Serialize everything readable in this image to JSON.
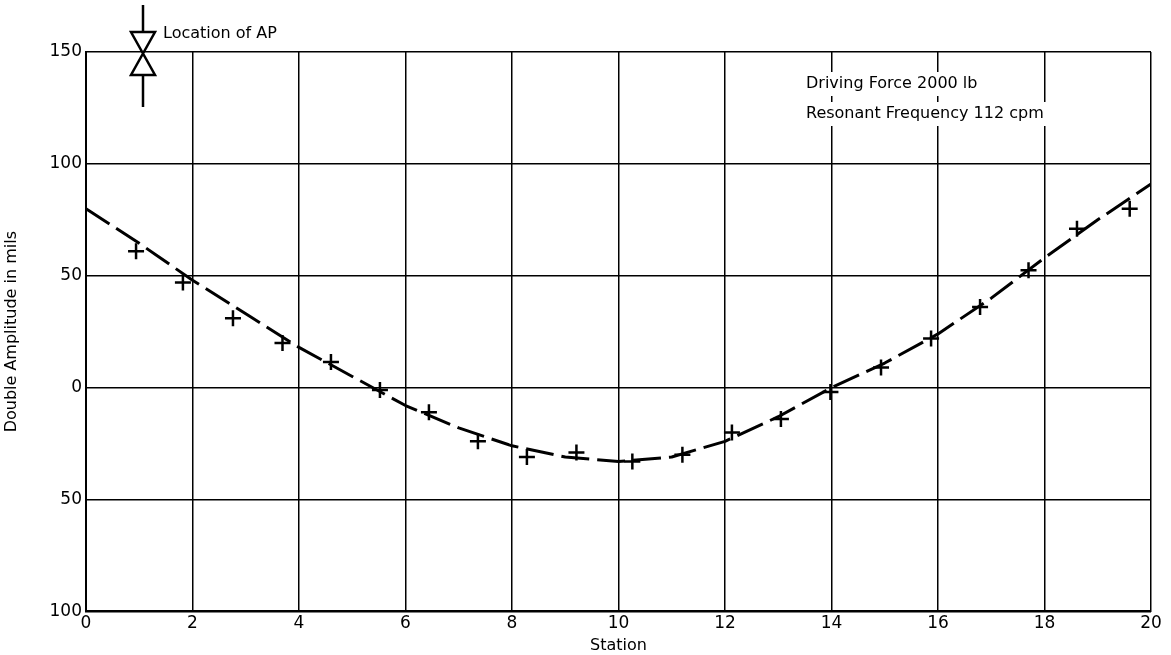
{
  "chart_data": {
    "type": "line",
    "xlabel": "Station",
    "ylabel": "Double Amplitude in mils",
    "annotations": [
      "Location of AP",
      "Driving Force 2000 lb",
      "Resonant Frequency 112 cpm"
    ],
    "xlim": [
      0,
      20
    ],
    "xticks": [
      0,
      2,
      4,
      6,
      8,
      10,
      12,
      14,
      16,
      18,
      20
    ],
    "ylim": [
      -100,
      150
    ],
    "yticks": [
      {
        "value": -100,
        "label": "100"
      },
      {
        "value": -50,
        "label": "50"
      },
      0,
      50,
      100,
      150
    ],
    "grid": true,
    "legend": false,
    "series": [
      {
        "color": "#000000",
        "line_style": "dashed",
        "marker": "none",
        "x": [
          0,
          1,
          2,
          3,
          4,
          5,
          6,
          7,
          8,
          9,
          10,
          11,
          12,
          13,
          14,
          15,
          16,
          17,
          18,
          19,
          20
        ],
        "values": [
          80,
          64.5,
          48,
          33,
          18,
          5,
          -8,
          -18,
          -26,
          -31,
          -33,
          -31,
          -24,
          -13,
          0,
          11,
          24,
          40,
          58,
          75,
          91
        ]
      },
      {
        "type": "scatter",
        "color": "#000000",
        "marker": "cross",
        "x": [
          0.94,
          1.82,
          2.76,
          3.69,
          4.6,
          5.52,
          6.44,
          7.36,
          8.28,
          9.21,
          10.26,
          11.2,
          12.13,
          13.05,
          13.98,
          14.93,
          15.87,
          16.79,
          17.7,
          18.61,
          19.6
        ],
        "values": [
          61,
          47,
          31,
          20,
          11.5,
          -1,
          -11,
          -24,
          -31,
          -29,
          -33,
          -30,
          -20,
          -14,
          -2,
          9,
          22,
          36,
          52.5,
          71,
          80
        ]
      }
    ]
  }
}
